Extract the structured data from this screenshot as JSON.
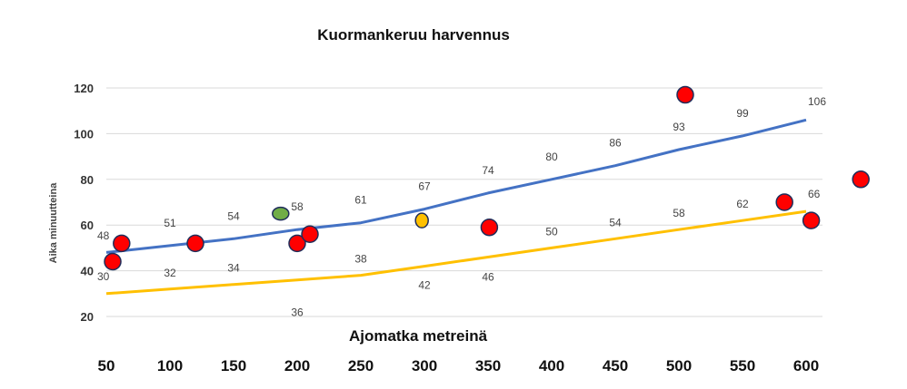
{
  "chart_data": {
    "type": "line",
    "title": "Kuormankeruu harvennus",
    "xlabel": "Ajomatka metreinä",
    "ylabel": "Aika minuutteina",
    "xlim": [
      50,
      600
    ],
    "ylim": [
      20,
      120
    ],
    "x_ticks": [
      50,
      100,
      150,
      200,
      250,
      300,
      350,
      400,
      450,
      500,
      550,
      600
    ],
    "y_ticks": [
      20,
      40,
      60,
      80,
      100,
      120
    ],
    "grid": true,
    "legend": "none",
    "colors": {
      "blue_line": "#4472c4",
      "yellow_line": "#ffc000",
      "red_point": "#ff0000",
      "green_point": "#70ad47",
      "orange_point": "#ffc000",
      "grid": "#d9d9d9"
    },
    "series": [
      {
        "type": "line",
        "color": "#4472c4",
        "x": [
          50,
          100,
          150,
          200,
          250,
          300,
          350,
          400,
          450,
          500,
          550,
          600
        ],
        "values": [
          48,
          51,
          54,
          58,
          61,
          67,
          74,
          80,
          86,
          93,
          99,
          106
        ],
        "labels": [
          "48",
          "51",
          "54",
          "58",
          "61",
          "67",
          "74",
          "80",
          "86",
          "93",
          "99",
          "106"
        ]
      },
      {
        "type": "line",
        "color": "#ffc000",
        "x": [
          50,
          100,
          150,
          200,
          250,
          300,
          350,
          400,
          450,
          500,
          550,
          600
        ],
        "values": [
          30,
          32,
          34,
          36,
          38,
          42,
          46,
          50,
          54,
          58,
          62,
          66
        ],
        "labels": [
          "30",
          "32",
          "34",
          "36",
          "38",
          "42",
          "46",
          "50",
          "54",
          "58",
          "62",
          "66"
        ]
      }
    ],
    "points": [
      {
        "x": 55,
        "y": 44,
        "color": "#ff0000"
      },
      {
        "x": 62,
        "y": 52,
        "color": "#ff0000"
      },
      {
        "x": 120,
        "y": 52,
        "color": "#ff0000"
      },
      {
        "x": 187,
        "y": 65,
        "color": "#70ad47"
      },
      {
        "x": 200,
        "y": 52,
        "color": "#ff0000"
      },
      {
        "x": 210,
        "y": 56,
        "color": "#ff0000"
      },
      {
        "x": 298,
        "y": 62,
        "color": "#ffc000"
      },
      {
        "x": 351,
        "y": 59,
        "color": "#ff0000"
      },
      {
        "x": 505,
        "y": 117,
        "color": "#ff0000"
      },
      {
        "x": 583,
        "y": 70,
        "color": "#ff0000"
      },
      {
        "x": 604,
        "y": 62,
        "color": "#ff0000"
      },
      {
        "x": 643,
        "y": 80,
        "color": "#ff0000"
      }
    ]
  }
}
